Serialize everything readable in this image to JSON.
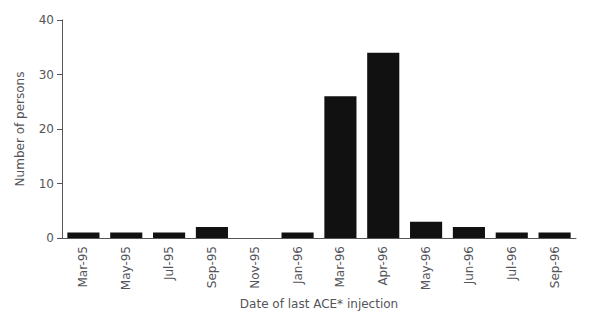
{
  "chart_data": {
    "type": "bar",
    "categories": [
      "Mar-95",
      "May-95",
      "Jul-95",
      "Sep-95",
      "Nov-95",
      "Jan-96",
      "Mar-96",
      "Apr-96",
      "May-96",
      "Jun-96",
      "Jul-96",
      "Sep-96"
    ],
    "values": [
      1,
      1,
      1,
      2,
      0,
      1,
      26,
      34,
      3,
      2,
      1,
      1
    ],
    "color": "#111111",
    "xlabel": "Date of last ACE* injection",
    "ylabel": "Number of persons",
    "ylim": [
      0,
      40
    ],
    "yticks": [
      0,
      10,
      20,
      30,
      40
    ],
    "grid": false
  }
}
